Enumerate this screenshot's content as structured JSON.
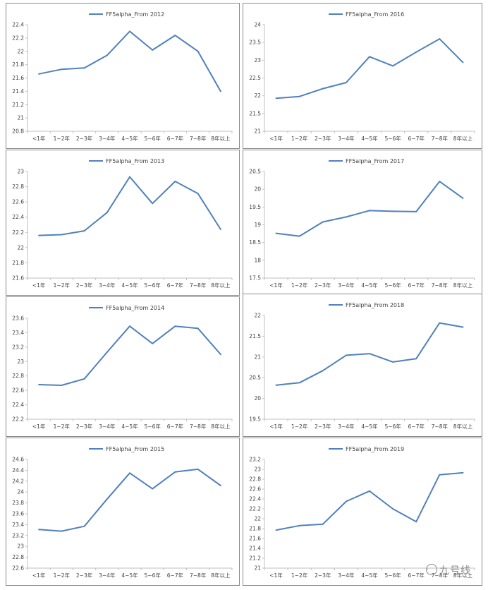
{
  "colors": {
    "line": "#4f81bd",
    "axis": "#bfbfbf",
    "text": "#404040"
  },
  "categories": [
    "<1年",
    "1~2年",
    "2~3年",
    "3~4年",
    "4~5年",
    "5~6年",
    "6~7年",
    "7~8年",
    "8年以上"
  ],
  "chart_data": [
    {
      "type": "line",
      "legend": "FF5alpha_From 2012",
      "legend_position": "top",
      "ylim": [
        20.8,
        22.4
      ],
      "ystep": 0.2,
      "decimals": 1,
      "series": [
        {
          "name": "FF5alpha_From 2012",
          "values": [
            21.66,
            21.73,
            21.75,
            21.94,
            22.3,
            22.02,
            22.24,
            22.0,
            21.4
          ]
        }
      ]
    },
    {
      "type": "line",
      "legend": "FF5alpha_From 2016",
      "legend_position": "top",
      "ylim": [
        21,
        24
      ],
      "ystep": 0.5,
      "decimals": 1,
      "series": [
        {
          "name": "FF5alpha_From 2016",
          "values": [
            21.93,
            21.98,
            22.2,
            22.37,
            23.1,
            22.84,
            23.23,
            23.6,
            22.94
          ]
        }
      ]
    },
    {
      "type": "line",
      "legend": "FF5alpha_From 2013",
      "legend_position": "top",
      "ylim": [
        21.6,
        23
      ],
      "ystep": 0.2,
      "decimals": 1,
      "series": [
        {
          "name": "FF5alpha_From 2013",
          "values": [
            22.16,
            22.17,
            22.22,
            22.46,
            22.93,
            22.58,
            22.87,
            22.71,
            22.24
          ]
        }
      ]
    },
    {
      "type": "line",
      "legend": "FF5alpha_From 2017",
      "legend_position": "top",
      "ylim": [
        17.5,
        20.5
      ],
      "ystep": 0.5,
      "decimals": 1,
      "series": [
        {
          "name": "FF5alpha_From 2017",
          "values": [
            18.76,
            18.68,
            19.08,
            19.22,
            19.4,
            19.38,
            19.37,
            20.22,
            19.75
          ]
        }
      ]
    },
    {
      "type": "line",
      "legend": "FF5alpha_From 2014",
      "legend_position": "top",
      "ylim": [
        22.2,
        23.6
      ],
      "ystep": 0.2,
      "decimals": 1,
      "series": [
        {
          "name": "FF5alpha_From 2014",
          "values": [
            22.68,
            22.67,
            22.76,
            23.13,
            23.49,
            23.25,
            23.49,
            23.46,
            23.1
          ]
        }
      ]
    },
    {
      "type": "line",
      "legend": "FF5alpha_From 2018",
      "legend_position": "top",
      "ylim": [
        19.5,
        22
      ],
      "ystep": 0.5,
      "decimals": 1,
      "series": [
        {
          "name": "FF5alpha_From 2018",
          "values": [
            20.32,
            20.38,
            20.67,
            21.04,
            21.08,
            20.88,
            20.96,
            21.82,
            21.72
          ]
        }
      ]
    },
    {
      "type": "line",
      "legend": "FF5alpha_From 2015",
      "legend_position": "top",
      "ylim": [
        22.6,
        24.6
      ],
      "ystep": 0.2,
      "decimals": 1,
      "series": [
        {
          "name": "FF5alpha_From 2015",
          "values": [
            23.31,
            23.28,
            23.37,
            23.87,
            24.35,
            24.06,
            24.37,
            24.42,
            24.12
          ]
        }
      ]
    },
    {
      "type": "line",
      "legend": "FF5alpha_From 2019",
      "legend_position": "top",
      "ylim": [
        21,
        23.2
      ],
      "ystep": 0.2,
      "decimals": 1,
      "series": [
        {
          "name": "FF5alpha_From 2019",
          "values": [
            21.77,
            21.86,
            21.89,
            22.35,
            22.56,
            22.2,
            21.94,
            22.89,
            22.93
          ]
        }
      ]
    }
  ],
  "watermark": {
    "icon": "wechat-icon",
    "text": "九号线"
  }
}
